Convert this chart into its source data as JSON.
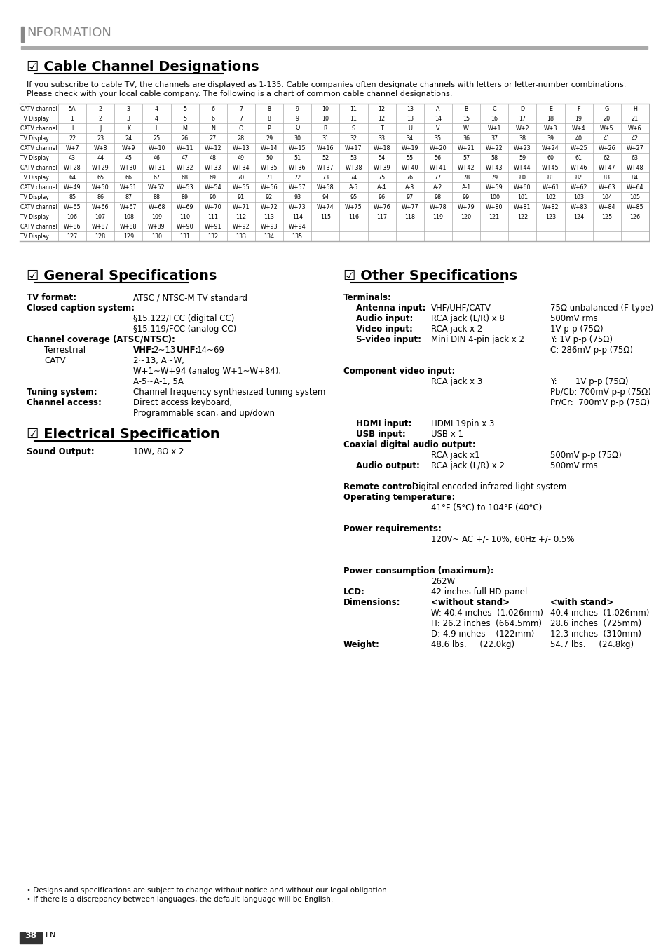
{
  "page_header": "NFORMATION",
  "section1_title": "☑ Cable Channel Designations",
  "section1_intro_line1": "If you subscribe to cable TV, the channels are displayed as 1-135. Cable companies often designate channels with letters or letter-number combinations.",
  "section1_intro_line2": "Please check with your local cable company. The following is a chart of common cable channel designations.",
  "table_rows": [
    [
      "CATV channel",
      "5A",
      "2",
      "3",
      "4",
      "5",
      "6",
      "7",
      "8",
      "9",
      "10",
      "11",
      "12",
      "13",
      "A",
      "B",
      "C",
      "D",
      "E",
      "F",
      "G",
      "H"
    ],
    [
      "TV Display",
      "1",
      "2",
      "3",
      "4",
      "5",
      "6",
      "7",
      "8",
      "9",
      "10",
      "11",
      "12",
      "13",
      "14",
      "15",
      "16",
      "17",
      "18",
      "19",
      "20",
      "21"
    ],
    [
      "CATV channel",
      "I",
      "J",
      "K",
      "L",
      "M",
      "N",
      "O",
      "P",
      "Q",
      "R",
      "S",
      "T",
      "U",
      "V",
      "W",
      "W+1",
      "W+2",
      "W+3",
      "W+4",
      "W+5",
      "W+6"
    ],
    [
      "TV Display",
      "22",
      "23",
      "24",
      "25",
      "26",
      "27",
      "28",
      "29",
      "30",
      "31",
      "32",
      "33",
      "34",
      "35",
      "36",
      "37",
      "38",
      "39",
      "40",
      "41",
      "42"
    ],
    [
      "CATV channel",
      "W+7",
      "W+8",
      "W+9",
      "W+10",
      "W+11",
      "W+12",
      "W+13",
      "W+14",
      "W+15",
      "W+16",
      "W+17",
      "W+18",
      "W+19",
      "W+20",
      "W+21",
      "W+22",
      "W+23",
      "W+24",
      "W+25",
      "W+26",
      "W+27"
    ],
    [
      "TV Display",
      "43",
      "44",
      "45",
      "46",
      "47",
      "48",
      "49",
      "50",
      "51",
      "52",
      "53",
      "54",
      "55",
      "56",
      "57",
      "58",
      "59",
      "60",
      "61",
      "62",
      "63"
    ],
    [
      "CATV channel",
      "W+28",
      "W+29",
      "W+30",
      "W+31",
      "W+32",
      "W+33",
      "W+34",
      "W+35",
      "W+36",
      "W+37",
      "W+38",
      "W+39",
      "W+40",
      "W+41",
      "W+42",
      "W+43",
      "W+44",
      "W+45",
      "W+46",
      "W+47",
      "W+48"
    ],
    [
      "TV Display",
      "64",
      "65",
      "66",
      "67",
      "68",
      "69",
      "70",
      "71",
      "72",
      "73",
      "74",
      "75",
      "76",
      "77",
      "78",
      "79",
      "80",
      "81",
      "82",
      "83",
      "84"
    ],
    [
      "CATV channel",
      "W+49",
      "W+50",
      "W+51",
      "W+52",
      "W+53",
      "W+54",
      "W+55",
      "W+56",
      "W+57",
      "W+58",
      "A-5",
      "A-4",
      "A-3",
      "A-2",
      "A-1",
      "W+59",
      "W+60",
      "W+61",
      "W+62",
      "W+63",
      "W+64"
    ],
    [
      "TV Display",
      "85",
      "86",
      "87",
      "88",
      "89",
      "90",
      "91",
      "92",
      "93",
      "94",
      "95",
      "96",
      "97",
      "98",
      "99",
      "100",
      "101",
      "102",
      "103",
      "104",
      "105"
    ],
    [
      "CATV channel",
      "W+65",
      "W+66",
      "W+67",
      "W+68",
      "W+69",
      "W+70",
      "W+71",
      "W+72",
      "W+73",
      "W+74",
      "W+75",
      "W+76",
      "W+77",
      "W+78",
      "W+79",
      "W+80",
      "W+81",
      "W+82",
      "W+83",
      "W+84",
      "W+85"
    ],
    [
      "TV Display",
      "106",
      "107",
      "108",
      "109",
      "110",
      "111",
      "112",
      "113",
      "114",
      "115",
      "116",
      "117",
      "118",
      "119",
      "120",
      "121",
      "122",
      "123",
      "124",
      "125",
      "126"
    ],
    [
      "CATV channel",
      "W+86",
      "W+87",
      "W+88",
      "W+89",
      "W+90",
      "W+91",
      "W+92",
      "W+93",
      "W+94",
      "",
      "",
      "",
      "",
      "",
      "",
      "",
      "",
      "",
      "",
      "",
      ""
    ],
    [
      "TV Display",
      "127",
      "128",
      "129",
      "130",
      "131",
      "132",
      "133",
      "134",
      "135",
      "",
      "",
      "",
      "",
      "",
      "",
      "",
      "",
      "",
      "",
      "",
      ""
    ]
  ],
  "section2_title": "☑ General Specifications",
  "section3_title": "☑ Other Specifications",
  "section4_title": "☑ Electrical Specification",
  "gen_specs": [
    {
      "label": "TV format:",
      "bold": true,
      "indent": 0,
      "value": "ATSC / NTSC-M TV standard",
      "val_bold": false
    },
    {
      "label": "Closed caption system:",
      "bold": true,
      "indent": 0,
      "value": "",
      "val_bold": false
    },
    {
      "label": "",
      "bold": false,
      "indent": 1,
      "value": "§15.122/FCC (digital CC)",
      "val_bold": false
    },
    {
      "label": "",
      "bold": false,
      "indent": 1,
      "value": "§15.119/FCC (analog CC)",
      "val_bold": false
    },
    {
      "label": "Channel coverage (ATSC/NTSC):",
      "bold": true,
      "indent": 0,
      "value": "",
      "val_bold": false
    },
    {
      "label": "Terrestrial",
      "bold": false,
      "indent": 1,
      "value": "VHF: 2~13   UHF: 14~69",
      "val_bold": false,
      "vhf_uhf": true
    },
    {
      "label": "CATV",
      "bold": false,
      "indent": 1,
      "value": "2~13, A~W,",
      "val_bold": false
    },
    {
      "label": "",
      "bold": false,
      "indent": 1,
      "value": "W+1~W+94 (analog W+1~W+84),",
      "val_bold": false
    },
    {
      "label": "",
      "bold": false,
      "indent": 1,
      "value": "A-5~A-1, 5A",
      "val_bold": false
    },
    {
      "label": "Tuning system:",
      "bold": true,
      "indent": 0,
      "value": "Channel frequency synthesized tuning system",
      "val_bold": false
    },
    {
      "label": "Channel access:",
      "bold": true,
      "indent": 0,
      "value": "Direct access keyboard,",
      "val_bold": false
    },
    {
      "label": "",
      "bold": false,
      "indent": 1,
      "value": "Programmable scan, and up/down",
      "val_bold": false
    }
  ],
  "elec_specs": [
    {
      "label": "Sound Output:",
      "value": "10W, 8Ω x 2"
    }
  ],
  "other_specs": [
    {
      "label": "Terminals:",
      "bold_label": true,
      "indent": 0,
      "col2": "",
      "col3": ""
    },
    {
      "label": "Antenna input:",
      "bold_label": true,
      "indent": 1,
      "col2": "VHF/UHF/CATV",
      "col3": "75Ω unbalanced (F-type)"
    },
    {
      "label": "Audio input:",
      "bold_label": true,
      "indent": 1,
      "col2": "RCA jack (L/R) x 8",
      "col3": "500mV rms"
    },
    {
      "label": "Video input:",
      "bold_label": true,
      "indent": 1,
      "col2": "RCA jack x 2",
      "col3": "1V p-p (75Ω)"
    },
    {
      "label": "S-video input:",
      "bold_label": true,
      "indent": 1,
      "col2": "Mini DIN 4-pin jack x 2",
      "col3": "Y: 1V p-p (75Ω)"
    },
    {
      "label": "",
      "bold_label": false,
      "indent": 0,
      "col2": "",
      "col3": "C: 286mV p-p (75Ω)"
    },
    {
      "label": "",
      "bold_label": false,
      "indent": 0,
      "col2": "",
      "col3": ""
    },
    {
      "label": "Component video input:",
      "bold_label": true,
      "indent": 0,
      "col2": "",
      "col3": ""
    },
    {
      "label": "",
      "bold_label": false,
      "indent": 0,
      "col2": "RCA jack x 3",
      "col3": "Y:       1V p-p (75Ω)"
    },
    {
      "label": "",
      "bold_label": false,
      "indent": 0,
      "col2": "",
      "col3": "Pb/Cb: 700mV p-p (75Ω)"
    },
    {
      "label": "",
      "bold_label": false,
      "indent": 0,
      "col2": "",
      "col3": "Pr/Cr:  700mV p-p (75Ω)"
    },
    {
      "label": "",
      "bold_label": false,
      "indent": 0,
      "col2": "",
      "col3": ""
    },
    {
      "label": "HDMI input:",
      "bold_label": true,
      "indent": 1,
      "col2": "HDMI 19pin x 3",
      "col3": ""
    },
    {
      "label": "USB input:",
      "bold_label": true,
      "indent": 1,
      "col2": "USB x 1",
      "col3": ""
    },
    {
      "label": "Coaxial digital audio output:",
      "bold_label": true,
      "indent": 0,
      "col2": "",
      "col3": ""
    },
    {
      "label": "",
      "bold_label": false,
      "indent": 0,
      "col2": "RCA jack x1",
      "col3": "500mV p-p (75Ω)"
    },
    {
      "label": "Audio output:",
      "bold_label": true,
      "indent": 1,
      "col2": "RCA jack (L/R) x 2",
      "col3": "500mV rms"
    },
    {
      "label": "",
      "bold_label": false,
      "indent": 0,
      "col2": "",
      "col3": ""
    },
    {
      "label": "Remote control:",
      "bold_label": true,
      "indent": 0,
      "col2": "Digital encoded infrared light system",
      "col3": ""
    },
    {
      "label": "Operating temperature:",
      "bold_label": true,
      "indent": 0,
      "col2": "",
      "col3": ""
    },
    {
      "label": "",
      "bold_label": false,
      "indent": 0,
      "col2": "41°F (5°C) to 104°F (40°C)",
      "col3": ""
    },
    {
      "label": "",
      "bold_label": false,
      "indent": 0,
      "col2": "",
      "col3": ""
    },
    {
      "label": "Power requirements:",
      "bold_label": true,
      "indent": 0,
      "col2": "",
      "col3": ""
    },
    {
      "label": "",
      "bold_label": false,
      "indent": 0,
      "col2": "120V~ AC +/- 10%, 60Hz +/- 0.5%",
      "col3": ""
    },
    {
      "label": "",
      "bold_label": false,
      "indent": 0,
      "col2": "",
      "col3": ""
    },
    {
      "label": "",
      "bold_label": false,
      "indent": 0,
      "col2": "",
      "col3": ""
    },
    {
      "label": "Power consumption (maximum):",
      "bold_label": true,
      "indent": 0,
      "col2": "",
      "col3": ""
    },
    {
      "label": "",
      "bold_label": false,
      "indent": 0,
      "col2": "262W",
      "col3": ""
    },
    {
      "label": "LCD:",
      "bold_label": true,
      "indent": 0,
      "col2": "42 inches full HD panel",
      "col3": ""
    },
    {
      "label": "Dimensions:",
      "bold_label": true,
      "indent": 0,
      "col2": "<without stand>",
      "col3": "<with stand>"
    },
    {
      "label": "",
      "bold_label": false,
      "indent": 0,
      "col2": "W: 40.4 inches  (1,026mm)",
      "col3": "40.4 inches  (1,026mm)"
    },
    {
      "label": "",
      "bold_label": false,
      "indent": 0,
      "col2": "H: 26.2 inches  (664.5mm)",
      "col3": "28.6 inches  (725mm)"
    },
    {
      "label": "",
      "bold_label": false,
      "indent": 0,
      "col2": "D: 4.9 inches    (122mm)",
      "col3": "12.3 inches  (310mm)"
    },
    {
      "label": "Weight:",
      "bold_label": true,
      "indent": 0,
      "col2": "48.6 lbs.     (22.0kg)",
      "col3": "54.7 lbs.     (24.8kg)"
    }
  ],
  "footnotes": [
    "• Designs and specifications are subject to change without notice and without our legal obligation.",
    "• If there is a discrepancy between languages, the default language will be English."
  ],
  "page_number": "38",
  "page_sub": "EN",
  "header_bar_color": "#888888",
  "header_rule_color": "#aaaaaa",
  "table_line_color": "#aaaaaa",
  "bg_color": "#ffffff"
}
